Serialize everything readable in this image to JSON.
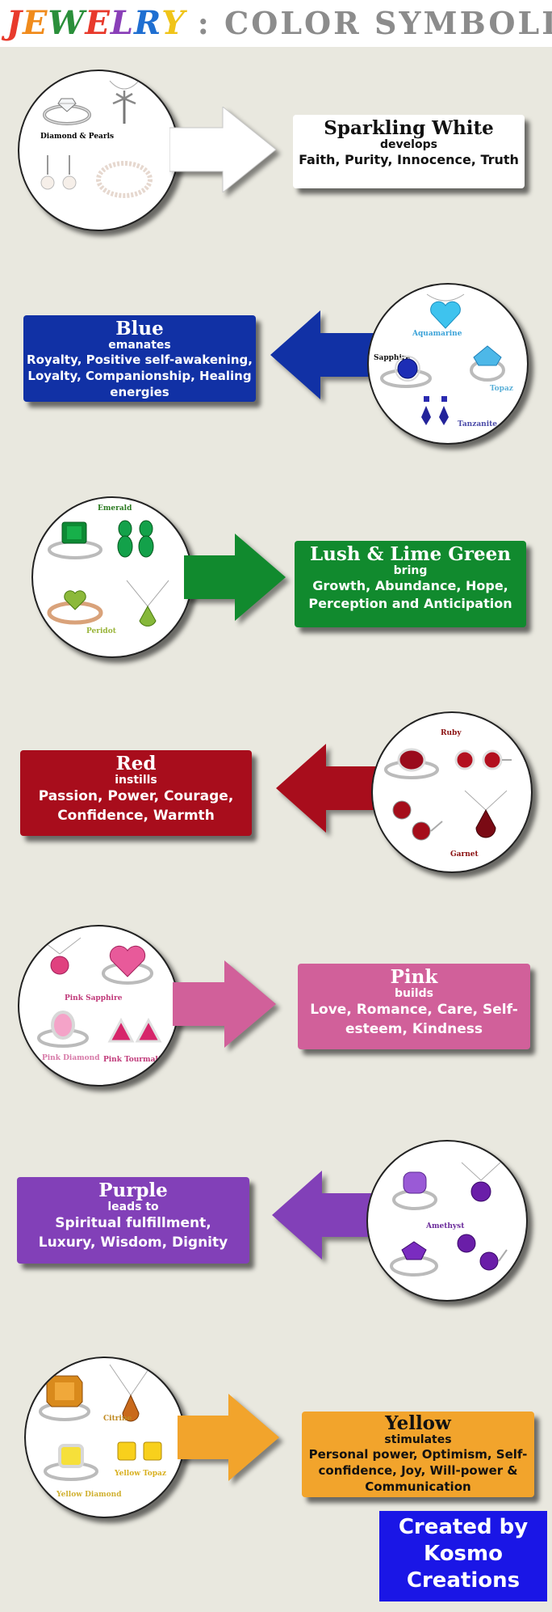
{
  "header": {
    "brand_letters": [
      "J",
      "E",
      "W",
      "E",
      "L",
      "R",
      "Y"
    ],
    "brand_colors": [
      "#e83a2c",
      "#f08b1c",
      "#2a8f3a",
      "#e83a2c",
      "#8a3fb8",
      "#1f6fd1",
      "#f0c419"
    ],
    "rest": ": COLOR SYMBOLISM"
  },
  "sections": [
    {
      "title": "Sparkling White",
      "verb": "develops",
      "desc": "Faith, Purity, Innocence, Truth",
      "color": "#ffffff",
      "gem_labels": [
        "Diamond & Pearls"
      ],
      "label_color": "#111111",
      "arrow_direction": "right"
    },
    {
      "title": "Blue",
      "verb": "emanates",
      "desc": "Royalty, Positive self-awakening, Loyalty, Companionship, Healing energies",
      "color": "#1131a5",
      "gem_labels": [
        "Aquamarine",
        "Sapphire",
        "Topaz",
        "Tanzanite"
      ],
      "label_color": "#2a4fa8",
      "arrow_direction": "left"
    },
    {
      "title": "Lush & Lime Green",
      "verb": "bring",
      "desc": "Growth, Abundance, Hope, Perception and Anticipation",
      "color": "#118a2e",
      "gem_labels": [
        "Emerald",
        "Peridot"
      ],
      "label_color": "#2a7a20",
      "arrow_direction": "right"
    },
    {
      "title": "Red",
      "verb": "instills",
      "desc": "Passion, Power, Courage, Confidence, Warmth",
      "color": "#a80d1c",
      "gem_labels": [
        "Ruby",
        "Garnet"
      ],
      "label_color": "#8a1010",
      "arrow_direction": "left"
    },
    {
      "title": "Pink",
      "verb": "builds",
      "desc": "Love, Romance, Care, Self-esteem, Kindness",
      "color": "#d1609a",
      "gem_labels": [
        "Pink Sapphire",
        "Pink Diamond",
        "Pink Tourmaline"
      ],
      "label_color": "#c03a7a",
      "arrow_direction": "right"
    },
    {
      "title": "Purple",
      "verb": "leads to",
      "desc": "Spiritual fulfillment, Luxury, Wisdom, Dignity",
      "color": "#8240b8",
      "gem_labels": [
        "Amethyst"
      ],
      "label_color": "#6a2a9a",
      "arrow_direction": "left"
    },
    {
      "title": "Yellow",
      "verb": "stimulates",
      "desc": "Personal power, Optimism, Self-confidence, Joy, Will-power & Communication",
      "color": "#f2a42c",
      "gem_labels": [
        "Citrine",
        "Yellow Topaz",
        "Yellow Diamond"
      ],
      "label_color": "#c08a20",
      "arrow_direction": "right"
    }
  ],
  "credit": {
    "line1": "Created by",
    "line2": "Kosmo",
    "line3": "Creations"
  }
}
